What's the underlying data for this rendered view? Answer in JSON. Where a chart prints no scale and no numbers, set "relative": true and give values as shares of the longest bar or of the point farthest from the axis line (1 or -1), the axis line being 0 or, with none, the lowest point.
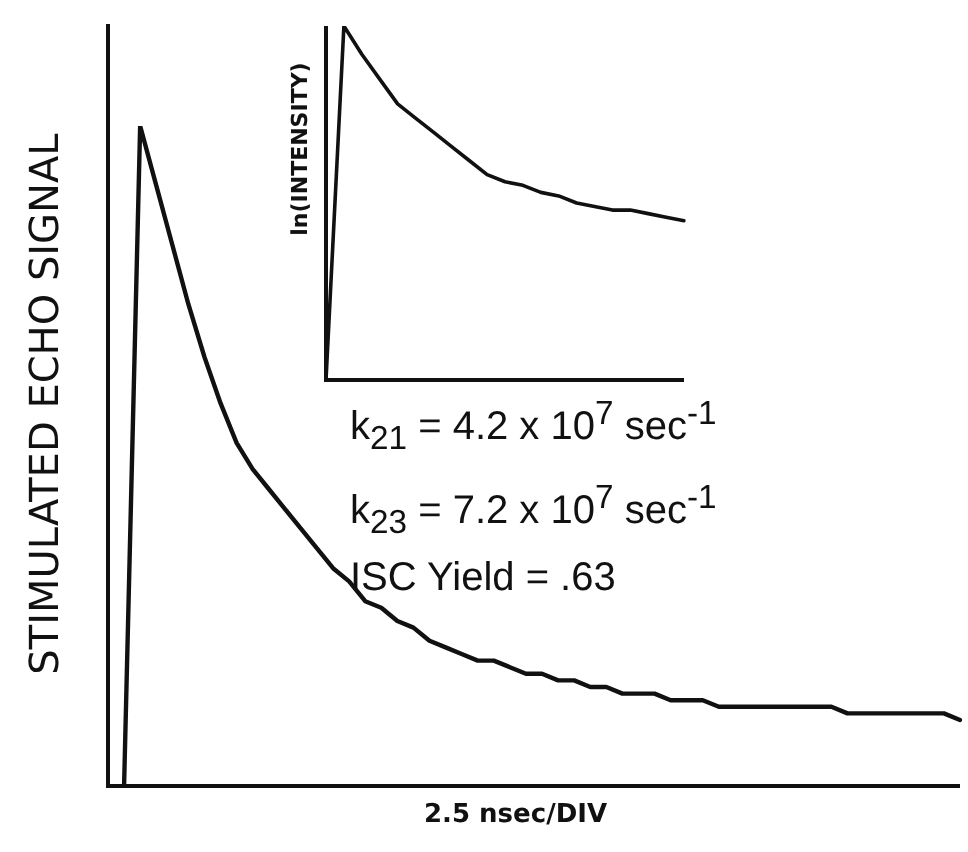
{
  "chart_data": [
    {
      "type": "line",
      "relative": true,
      "ylabel": "STIMULATED ECHO SIGNAL",
      "xlabel": "2.5 nsec/DIV",
      "tick_labels": false,
      "marker": "none",
      "annotations": [
        "k$_{21}$ = 4.2 x 10$^{7}$ sec$^{-1}$",
        "k$_{23}$ = 7.2 x 10$^{7}$ sec$^{-1}$",
        "ISC Yield = .63"
      ],
      "categories": [
        null,
        null,
        null,
        null,
        null,
        null,
        null,
        null,
        null,
        null,
        null,
        null,
        null,
        null,
        null,
        null,
        null,
        null,
        null,
        null,
        null,
        null,
        null,
        null,
        null,
        null,
        null,
        null,
        null,
        null,
        null,
        null,
        null,
        null,
        null,
        null,
        null,
        null,
        null,
        null,
        null,
        null,
        null,
        null,
        null,
        null,
        null,
        null,
        null,
        null,
        null,
        null,
        null,
        null
      ],
      "series": [
        {
          "color": "#111111",
          "values": [
            null,
            0,
            1,
            0.91,
            0.82,
            0.73,
            0.65,
            0.58,
            0.52,
            0.48,
            0.45,
            0.42,
            0.39,
            0.36,
            0.33,
            0.31,
            0.28,
            0.27,
            0.25,
            0.24,
            0.22,
            0.21,
            0.2,
            0.19,
            0.19,
            0.18,
            0.17,
            0.17,
            0.16,
            0.16,
            0.15,
            0.15,
            0.14,
            0.14,
            0.14,
            0.13,
            0.13,
            0.13,
            0.12,
            0.12,
            0.12,
            0.12,
            0.12,
            0.12,
            0.12,
            0.12,
            0.11,
            0.11,
            0.11,
            0.11,
            0.11,
            0.11,
            0.11,
            0.1
          ]
        }
      ]
    },
    {
      "type": "line",
      "relative": true,
      "ylabel": "ln(INTENSITY)",
      "tick_labels": false,
      "marker": "none",
      "categories": [
        null,
        null,
        null,
        null,
        null,
        null,
        null,
        null,
        null,
        null,
        null,
        null,
        null,
        null,
        null,
        null,
        null,
        null,
        null,
        null,
        null
      ],
      "series": [
        {
          "color": "#111111",
          "values": [
            0,
            1,
            0.92,
            0.85,
            0.78,
            0.74,
            0.7,
            0.66,
            0.62,
            0.58,
            0.56,
            0.55,
            0.53,
            0.52,
            0.5,
            0.49,
            0.48,
            0.48,
            0.47,
            0.46,
            0.45
          ]
        }
      ]
    }
  ]
}
